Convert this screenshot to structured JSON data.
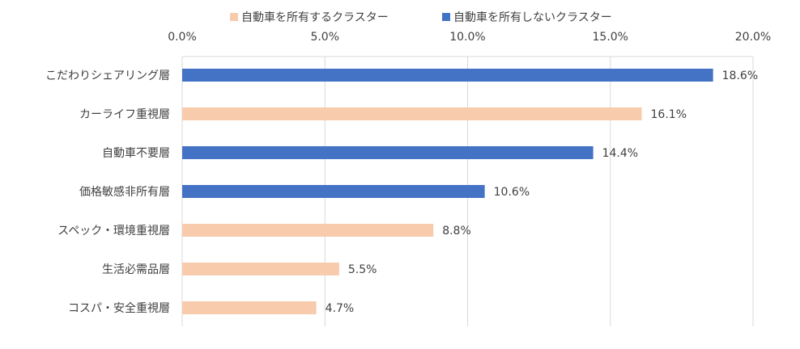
{
  "chart_data": {
    "type": "bar",
    "orientation": "horizontal",
    "categories": [
      "こだわりシェアリング層",
      "カーライフ重視層",
      "自動車不要層",
      "価格敏感非所有層",
      "スペック・環境重視層",
      "生活必需品層",
      "コスパ・安全重視層"
    ],
    "values": [
      18.6,
      16.1,
      14.4,
      10.6,
      8.8,
      5.5,
      4.7
    ],
    "value_labels": [
      "18.6%",
      "16.1%",
      "14.4%",
      "10.6%",
      "8.8%",
      "5.5%",
      "4.7%"
    ],
    "group": [
      1,
      0,
      1,
      1,
      0,
      0,
      0
    ],
    "series": [
      {
        "name": "自動車を所有するクラスター",
        "color": "#f8cbad"
      },
      {
        "name": "自動車を所有しないクラスター",
        "color": "#4472c4"
      }
    ],
    "x_ticks": [
      0,
      5,
      10,
      15,
      20
    ],
    "x_tick_labels": [
      "0.0%",
      "5.0%",
      "10.0%",
      "15.0%",
      "20.0%"
    ],
    "xlim": [
      0,
      20
    ],
    "x_axis_position": "top",
    "legend_position": "top",
    "grid": true
  }
}
